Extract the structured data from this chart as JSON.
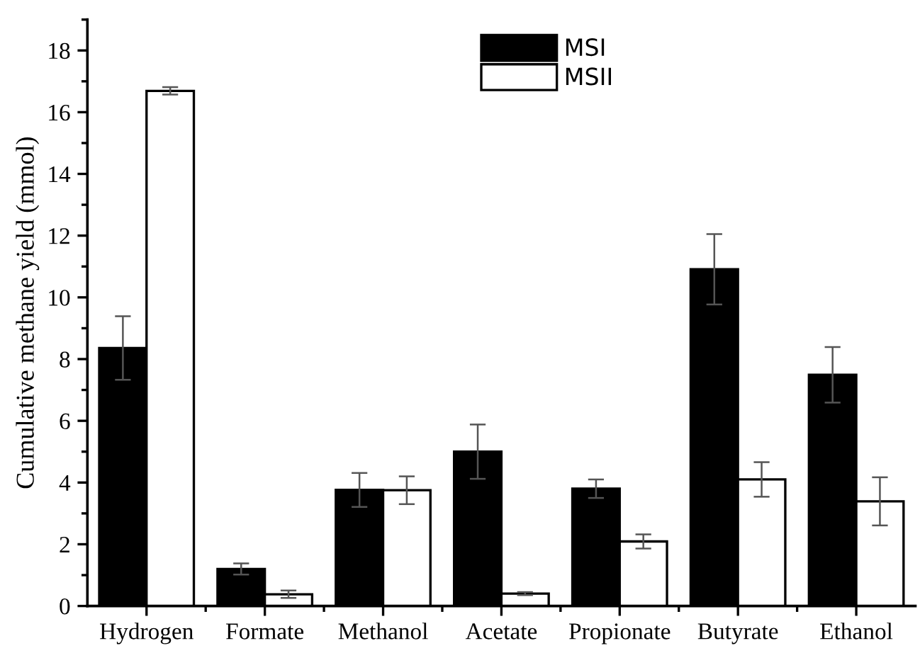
{
  "chart_data": {
    "type": "bar",
    "ylabel": "Cumulative methane yield (mmol)",
    "categories": [
      "Hydrogen",
      "Formate",
      "Methanol",
      "Acetate",
      "Propionate",
      "Butyrate",
      "Ethanol"
    ],
    "series": [
      {
        "name": "MSI",
        "color": "#000000",
        "values": [
          8.36,
          1.2,
          3.76,
          5.0,
          3.8,
          10.91,
          7.49
        ],
        "errors": [
          1.03,
          0.18,
          0.55,
          0.88,
          0.3,
          1.14,
          0.9
        ]
      },
      {
        "name": "MSII",
        "color": "#ffffff",
        "values": [
          16.69,
          0.38,
          3.75,
          0.4,
          2.09,
          4.1,
          3.39
        ],
        "errors": [
          0.12,
          0.12,
          0.45,
          0.05,
          0.23,
          0.56,
          0.78
        ]
      }
    ],
    "ylim": [
      0,
      19
    ],
    "yticks": [
      0,
      2,
      4,
      6,
      8,
      10,
      12,
      14,
      16,
      18
    ],
    "grid": false,
    "legend": "top"
  }
}
